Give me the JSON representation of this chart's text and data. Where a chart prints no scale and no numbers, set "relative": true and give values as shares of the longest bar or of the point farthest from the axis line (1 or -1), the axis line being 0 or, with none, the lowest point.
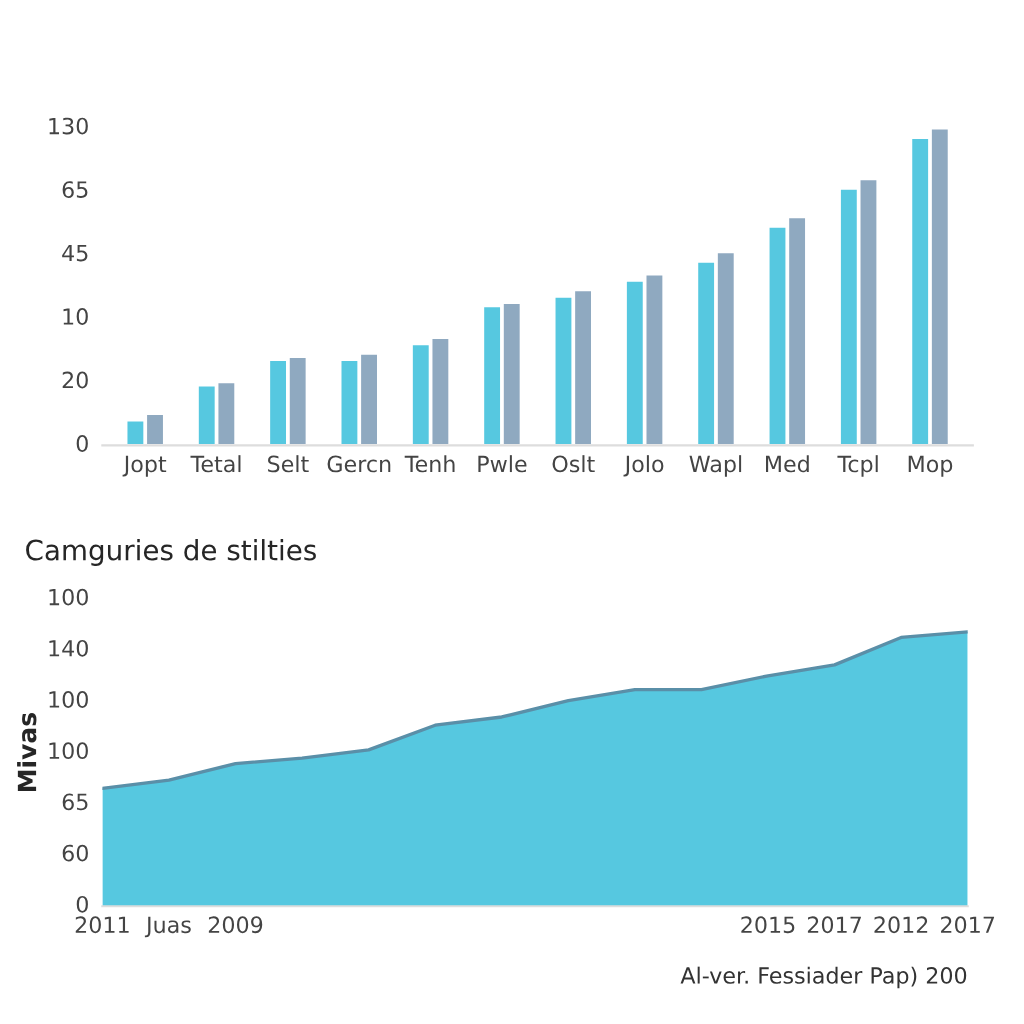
{
  "chart_data": [
    {
      "type": "bar",
      "relative": true,
      "categories": [
        "Jopt",
        "Tetal",
        "Selt",
        "Gercn",
        "Tenh",
        "Pwle",
        "Oslt",
        "Jolo",
        "Wapl",
        "Med",
        "Tcpl",
        "Mop"
      ],
      "series": [
        {
          "color": "#56c8e0",
          "values": [
            0.08,
            0.19,
            0.27,
            0.27,
            0.32,
            0.44,
            0.47,
            0.52,
            0.58,
            0.69,
            0.81,
            0.97
          ]
        },
        {
          "color": "#8fa9c0",
          "values": [
            0.1,
            0.2,
            0.28,
            0.29,
            0.34,
            0.45,
            0.49,
            0.54,
            0.61,
            0.72,
            0.84,
            1
          ]
        }
      ],
      "annotations": [
        "0",
        "20",
        "10",
        "45",
        "65",
        "130"
      ]
    },
    {
      "type": "area",
      "relative": true,
      "title": "Camguries de stilties",
      "ylabel": "Mivas",
      "categories": [
        "2011",
        "Juas",
        "2009",
        null,
        null,
        null,
        null,
        null,
        null,
        null,
        "2015",
        "2017",
        "2012",
        "2017"
      ],
      "series": [
        {
          "color": "#56c8e0",
          "values": [
            0.43,
            0.46,
            0.52,
            0.54,
            0.57,
            0.66,
            0.69,
            0.75,
            0.79,
            0.79,
            0.84,
            0.88,
            0.98,
            1
          ]
        }
      ],
      "annotations": [
        "0",
        "60",
        "65",
        "100",
        "100",
        "140",
        "100"
      ]
    },
    {
      "type": "other",
      "annotations": [
        "Al-ver. Fessiader Pap) 200"
      ]
    }
  ]
}
